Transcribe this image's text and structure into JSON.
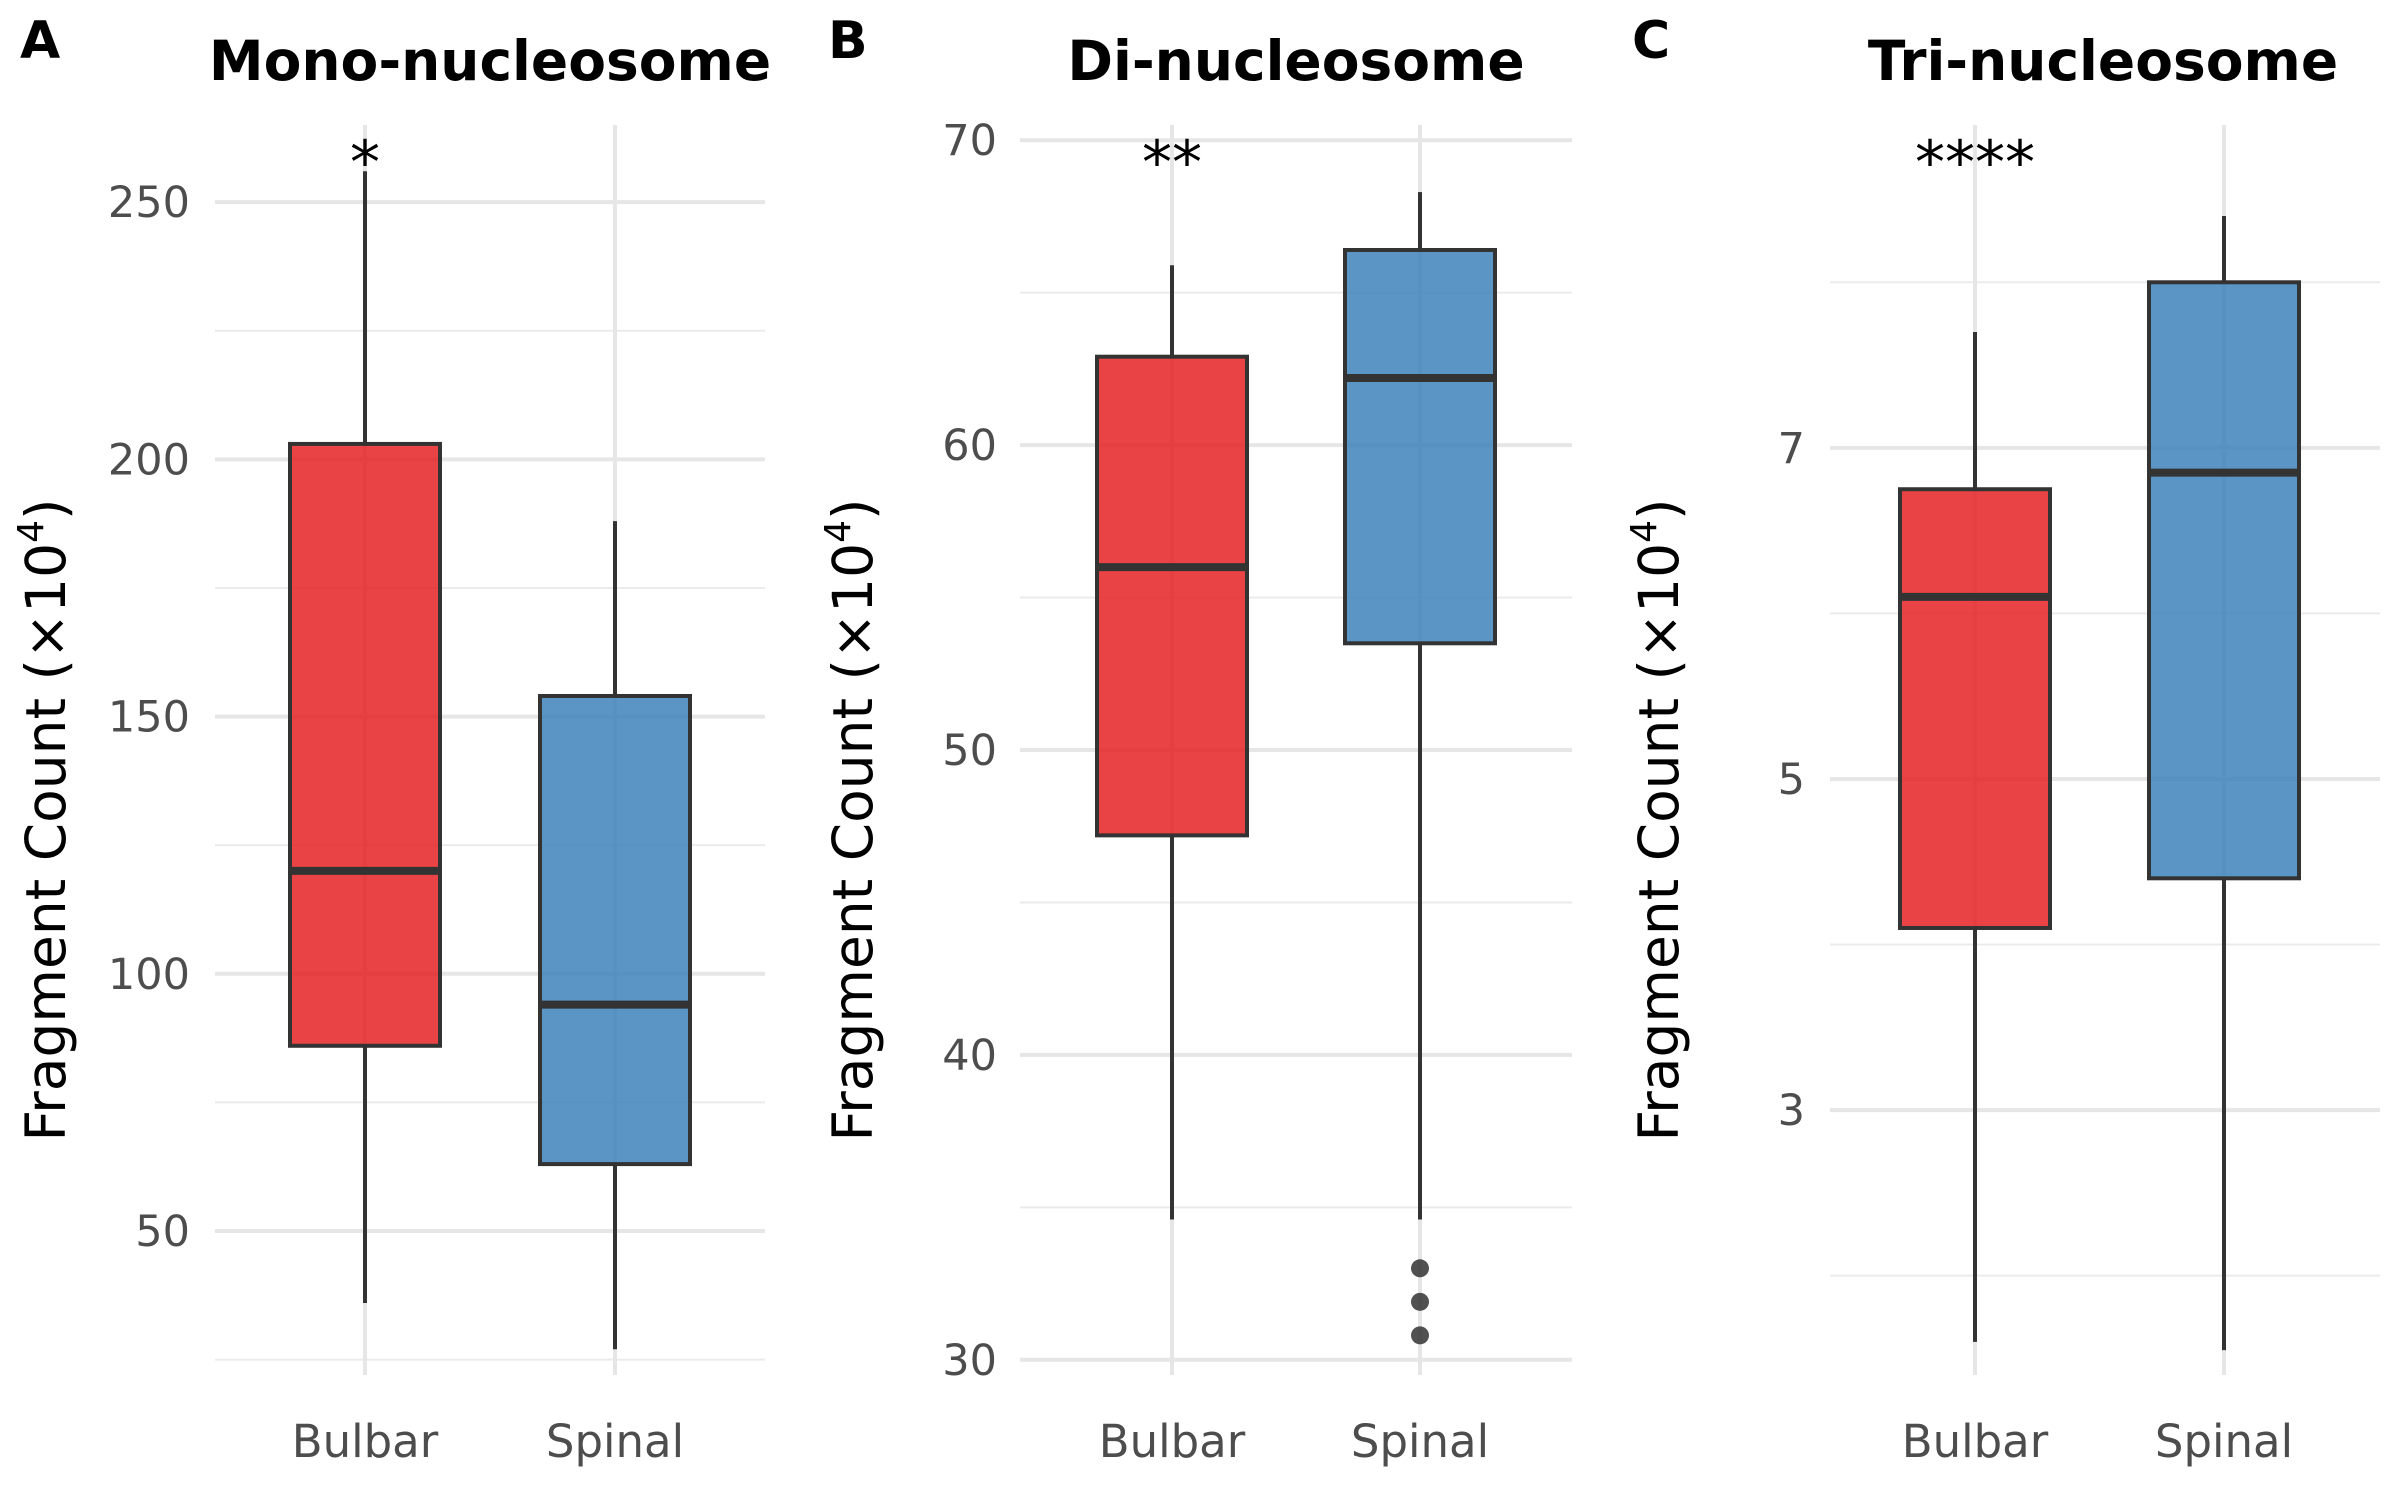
{
  "chart_data": [
    {
      "type": "box",
      "panel_label": "A",
      "title": "Mono-nucleosome",
      "ylabel": "Fragment Count (×10",
      "ylabel_sup": "4",
      "ylabel_close": ")",
      "categories": [
        "Bulbar",
        "Spinal"
      ],
      "ylim": [
        22,
        265
      ],
      "major_ticks": [
        50,
        100,
        150,
        200,
        250
      ],
      "tick_labels": [
        "50",
        "100",
        "150",
        "200",
        "250"
      ],
      "grid": true,
      "significance": "*",
      "boxes": [
        {
          "name": "Bulbar",
          "whisker_low": 36,
          "q1": 86,
          "median": 120,
          "q3": 203,
          "whisker_high": 256,
          "outliers": [],
          "color": "#E41A1C"
        },
        {
          "name": "Spinal",
          "whisker_low": 27,
          "q1": 63,
          "median": 94,
          "q3": 154,
          "whisker_high": 188,
          "outliers": [],
          "color": "#377EB8"
        }
      ]
    },
    {
      "type": "box",
      "panel_label": "B",
      "title": "Di-nucleosome",
      "ylabel": "Fragment Count (×10",
      "ylabel_sup": "4",
      "ylabel_close": ")",
      "categories": [
        "Bulbar",
        "Spinal"
      ],
      "ylim": [
        29.5,
        70.5
      ],
      "major_ticks": [
        30,
        40,
        50,
        60,
        70
      ],
      "tick_labels": [
        "30",
        "40",
        "50",
        "60",
        "70"
      ],
      "grid": true,
      "significance": "**",
      "boxes": [
        {
          "name": "Bulbar",
          "whisker_low": 34.6,
          "q1": 47.2,
          "median": 56,
          "q3": 62.9,
          "whisker_high": 65.9,
          "outliers": [],
          "color": "#E41A1C"
        },
        {
          "name": "Spinal",
          "whisker_low": 34.6,
          "q1": 53.5,
          "median": 62.2,
          "q3": 66.4,
          "whisker_high": 68.3,
          "outliers": [
            33.0,
            31.9,
            30.8
          ],
          "color": "#377EB8"
        }
      ]
    },
    {
      "type": "box",
      "panel_label": "C",
      "title": "Tri-nucleosome",
      "ylabel": "Fragment Count (×10",
      "ylabel_sup": "4",
      "ylabel_close": ")",
      "categories": [
        "Bulbar",
        "Spinal"
      ],
      "ylim": [
        1.4,
        8.95
      ],
      "major_ticks": [
        3,
        5,
        7
      ],
      "tick_labels": [
        "3",
        "5",
        "7"
      ],
      "grid": true,
      "significance": "****",
      "boxes": [
        {
          "name": "Bulbar",
          "whisker_low": 1.6,
          "q1": 4.1,
          "median": 6.1,
          "q3": 6.75,
          "whisker_high": 7.7,
          "outliers": [],
          "color": "#E41A1C"
        },
        {
          "name": "Spinal",
          "whisker_low": 1.55,
          "q1": 4.4,
          "median": 6.85,
          "q3": 8.0,
          "whisker_high": 8.4,
          "outliers": [],
          "color": "#377EB8"
        }
      ]
    }
  ]
}
